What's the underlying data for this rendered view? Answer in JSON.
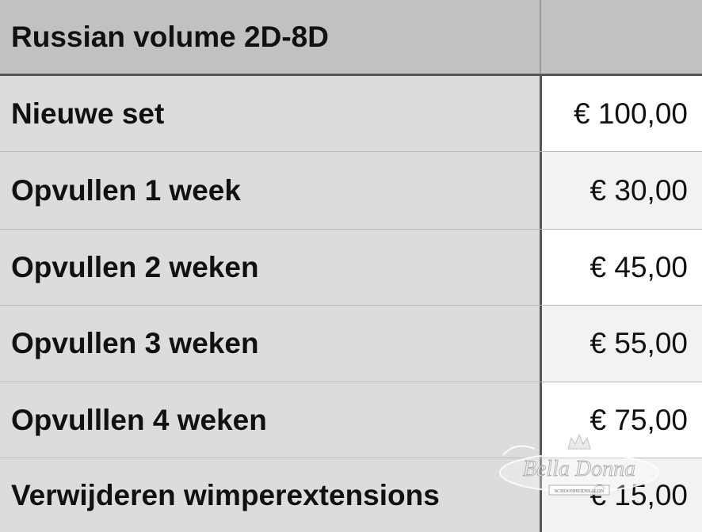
{
  "header": {
    "title": "Russian volume 2D-8D",
    "price": ""
  },
  "rows": [
    {
      "label": "Nieuwe set",
      "price": "€ 100,00"
    },
    {
      "label": "Opvullen 1 week",
      "price": "€ 30,00"
    },
    {
      "label": "Opvullen 2 weken",
      "price": "€ 45,00"
    },
    {
      "label": "Opvullen 3 weken",
      "price": "€ 55,00"
    },
    {
      "label": "Opvulllen 4 weken",
      "price": "€ 75,00"
    },
    {
      "label": "Verwijderen wimperextensions",
      "price": "€ 15,00"
    }
  ],
  "watermark": {
    "name": "Bella Donna",
    "subtitle": "SCHOONHEIDSSALON"
  },
  "colors": {
    "header_bg": "#c0c2c1",
    "label_bg": "#dcdcdc",
    "divider": "#555555"
  }
}
